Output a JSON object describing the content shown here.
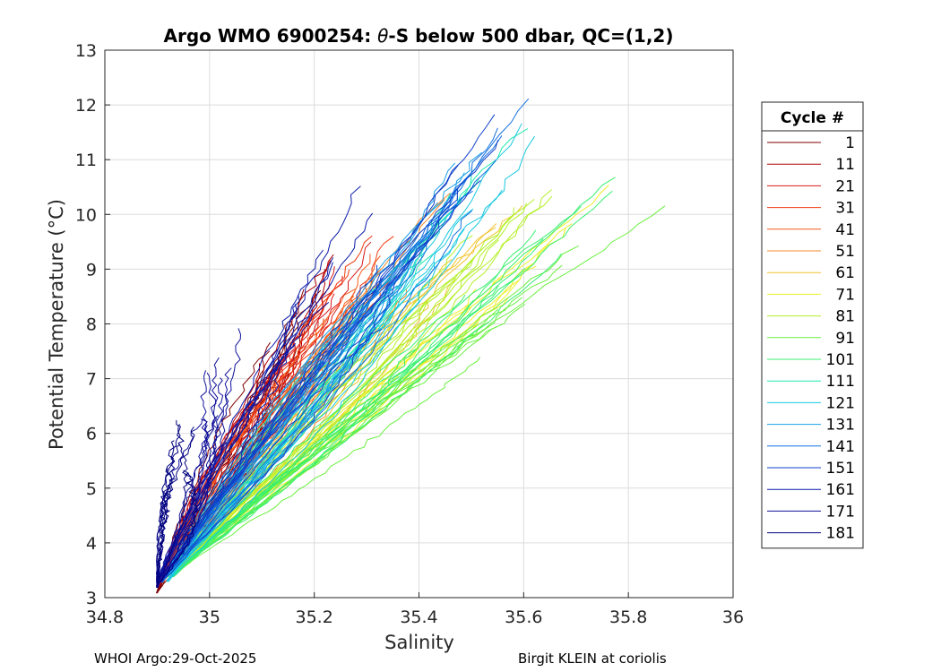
{
  "chart_data": {
    "type": "line",
    "title_prefix": "Argo WMO 6900254: ",
    "title_theta": "θ",
    "title_suffix": "-S below 500 dbar,  QC=(1,2)",
    "xlabel": "Salinity",
    "ylabel": "Potential Temperature (°C)",
    "xlim": [
      34.8,
      36
    ],
    "ylim": [
      3,
      13
    ],
    "xticks": [
      "34.8",
      "35",
      "35.2",
      "35.4",
      "35.6",
      "35.8",
      "36"
    ],
    "yticks": [
      "3",
      "4",
      "5",
      "6",
      "7",
      "8",
      "9",
      "10",
      "11",
      "12",
      "13"
    ],
    "grid": true,
    "legend": {
      "title": "Cycle #",
      "position": "right",
      "entries": [
        {
          "label": "1",
          "color": "#800000"
        },
        {
          "label": "11",
          "color": "#b30000"
        },
        {
          "label": "21",
          "color": "#d71a1a"
        },
        {
          "label": "31",
          "color": "#ef3a10"
        },
        {
          "label": "41",
          "color": "#f55a1a"
        },
        {
          "label": "51",
          "color": "#f58a28"
        },
        {
          "label": "61",
          "color": "#f2c430"
        },
        {
          "label": "71",
          "color": "#eeee2a"
        },
        {
          "label": "81",
          "color": "#b4f028"
        },
        {
          "label": "91",
          "color": "#6af040"
        },
        {
          "label": "101",
          "color": "#38f070"
        },
        {
          "label": "111",
          "color": "#20e8b0"
        },
        {
          "label": "121",
          "color": "#18c8e0"
        },
        {
          "label": "131",
          "color": "#1aa0e8"
        },
        {
          "label": "141",
          "color": "#1470e0"
        },
        {
          "label": "151",
          "color": "#1040c8"
        },
        {
          "label": "161",
          "color": "#0a1aa8"
        },
        {
          "label": "171",
          "color": "#10109a"
        },
        {
          "label": "181",
          "color": "#000080"
        }
      ]
    },
    "profile_envelopes": [
      {
        "color": "#800000",
        "s_top": 35.21,
        "t_top": 8.9,
        "s_bot": 34.9,
        "t_bot": 3.1
      },
      {
        "color": "#b30000",
        "s_top": 35.26,
        "t_top": 9.6,
        "s_bot": 34.9,
        "t_bot": 3.2
      },
      {
        "color": "#d71a1a",
        "s_top": 35.31,
        "t_top": 9.7,
        "s_bot": 34.9,
        "t_bot": 3.2
      },
      {
        "color": "#ef3a10",
        "s_top": 35.36,
        "t_top": 10.0,
        "s_bot": 34.9,
        "t_bot": 3.3
      },
      {
        "color": "#f55a1a",
        "s_top": 35.41,
        "t_top": 10.2,
        "s_bot": 34.91,
        "t_bot": 3.3
      },
      {
        "color": "#f58a28",
        "s_top": 35.46,
        "t_top": 10.3,
        "s_bot": 34.91,
        "t_bot": 3.3
      },
      {
        "color": "#f2c430",
        "s_top": 35.62,
        "t_top": 10.6,
        "s_bot": 34.92,
        "t_bot": 3.4
      },
      {
        "color": "#eeee2a",
        "s_top": 35.76,
        "t_top": 10.3,
        "s_bot": 34.92,
        "t_bot": 3.4
      },
      {
        "color": "#b4f028",
        "s_top": 35.66,
        "t_top": 10.8,
        "s_bot": 34.93,
        "t_bot": 3.4
      },
      {
        "color": "#6af040",
        "s_top": 35.88,
        "t_top": 10.5,
        "s_bot": 34.93,
        "t_bot": 3.4
      },
      {
        "color": "#38f070",
        "s_top": 35.78,
        "t_top": 10.6,
        "s_bot": 34.93,
        "t_bot": 3.4
      },
      {
        "color": "#20e8b0",
        "s_top": 35.58,
        "t_top": 11.4,
        "s_bot": 34.92,
        "t_bot": 3.4
      },
      {
        "color": "#18c8e0",
        "s_top": 35.68,
        "t_top": 12.1,
        "s_bot": 34.92,
        "t_bot": 3.3
      },
      {
        "color": "#1aa0e8",
        "s_top": 35.56,
        "t_top": 11.6,
        "s_bot": 34.91,
        "t_bot": 3.3
      },
      {
        "color": "#1470e0",
        "s_top": 35.61,
        "t_top": 12.0,
        "s_bot": 34.91,
        "t_bot": 3.3
      },
      {
        "color": "#1040c8",
        "s_top": 35.59,
        "t_top": 11.9,
        "s_bot": 34.91,
        "t_bot": 3.3
      },
      {
        "color": "#0a1aa8",
        "s_top": 35.3,
        "t_top": 10.4,
        "s_bot": 34.9,
        "t_bot": 3.3
      },
      {
        "color": "#10109a",
        "s_top": 35.05,
        "t_top": 8.1,
        "s_bot": 34.9,
        "t_bot": 3.2
      },
      {
        "color": "#000080",
        "s_top": 34.95,
        "t_top": 6.4,
        "s_bot": 34.9,
        "t_bot": 3.2
      }
    ]
  },
  "footer": {
    "left": "WHOI Argo:29-Oct-2025",
    "right": "Birgit KLEIN at coriolis"
  }
}
